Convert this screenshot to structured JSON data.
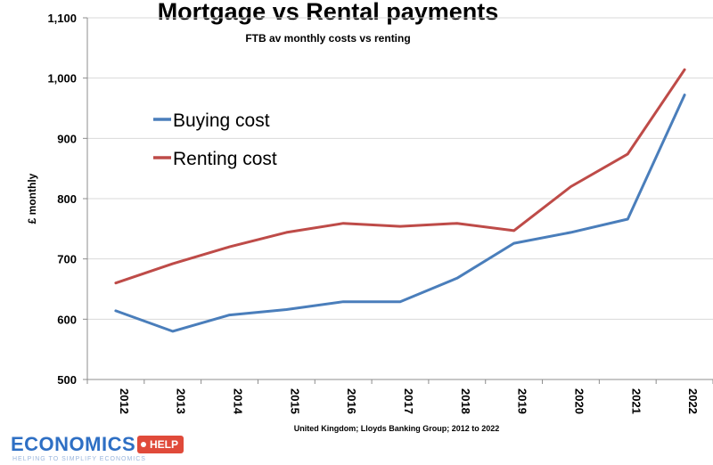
{
  "chart_data": {
    "type": "line",
    "title": "Mortgage vs Rental payments",
    "subtitle": "FTB av monthly costs vs renting",
    "ylabel": "£ monthly",
    "xlabel": "",
    "source": "United Kingdom; Lloyds Banking Group; 2012 to 2022",
    "categories": [
      "2012",
      "2013",
      "2014",
      "2015",
      "2016",
      "2017",
      "2018",
      "2019",
      "2020",
      "2021",
      "2022"
    ],
    "ylim": [
      500,
      1100
    ],
    "yticks": [
      500,
      600,
      700,
      800,
      900,
      1000,
      1100
    ],
    "ytick_labels": [
      "500",
      "600",
      "700",
      "800",
      "900",
      "1,000",
      "1,100"
    ],
    "grid": true,
    "legend_position": "upper-left",
    "series": [
      {
        "name": "Buying cost",
        "color": "#4a7ebb",
        "values": [
          614,
          580,
          607,
          616,
          629,
          629,
          668,
          726,
          744,
          766,
          972
        ]
      },
      {
        "name": "Renting cost",
        "color": "#be4b48",
        "values": [
          660,
          692,
          720,
          744,
          759,
          754,
          759,
          747,
          820,
          874,
          1014
        ]
      }
    ]
  },
  "logo": {
    "word": "ECONOMICS",
    "tag": "HELP",
    "tagline": "HELPING TO SIMPLIFY ECONOMICS"
  }
}
